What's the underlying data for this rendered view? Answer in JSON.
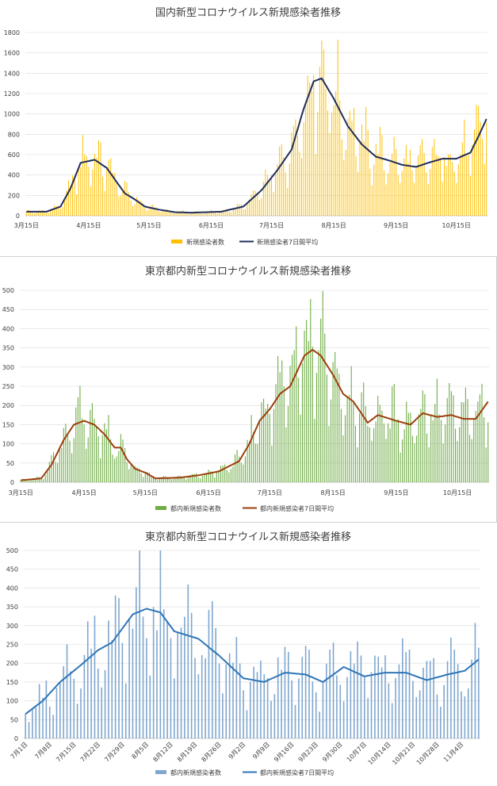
{
  "chart_data": [
    {
      "type": "bar",
      "title": "国内新型コロナウイルス新規感染者推移",
      "ylim": [
        0,
        1800
      ],
      "yticks": [
        0,
        200,
        400,
        600,
        800,
        1000,
        1200,
        1400,
        1600,
        1800
      ],
      "x_start": "2020-03-15",
      "x_end": "2020-10-30",
      "x_tick_labels": [
        "3月15日",
        "4月15日",
        "5月15日",
        "6月15日",
        "7月15日",
        "8月15日",
        "9月15日",
        "10月15日"
      ],
      "grid": true,
      "legend": "bottom",
      "series": [
        {
          "name": "新規感染者数",
          "kind": "bar",
          "color": "#ffc000"
        },
        {
          "name": "新規感染者7日間平均",
          "kind": "line",
          "color": "#1f2d5a",
          "anchors": [
            [
              "2020-03-15",
              40
            ],
            [
              "2020-03-25",
              40
            ],
            [
              "2020-04-01",
              90
            ],
            [
              "2020-04-06",
              270
            ],
            [
              "2020-04-11",
              520
            ],
            [
              "2020-04-18",
              550
            ],
            [
              "2020-04-24",
              470
            ],
            [
              "2020-04-29",
              330
            ],
            [
              "2020-05-03",
              220
            ],
            [
              "2020-05-08",
              160
            ],
            [
              "2020-05-13",
              90
            ],
            [
              "2020-05-20",
              60
            ],
            [
              "2020-05-28",
              35
            ],
            [
              "2020-06-05",
              30
            ],
            [
              "2020-06-20",
              40
            ],
            [
              "2020-07-01",
              90
            ],
            [
              "2020-07-10",
              250
            ],
            [
              "2020-07-18",
              450
            ],
            [
              "2020-07-25",
              650
            ],
            [
              "2020-07-31",
              1050
            ],
            [
              "2020-08-05",
              1320
            ],
            [
              "2020-08-09",
              1350
            ],
            [
              "2020-08-15",
              1150
            ],
            [
              "2020-08-22",
              880
            ],
            [
              "2020-08-29",
              700
            ],
            [
              "2020-09-05",
              580
            ],
            [
              "2020-09-12",
              540
            ],
            [
              "2020-09-18",
              500
            ],
            [
              "2020-09-25",
              480
            ],
            [
              "2020-10-01",
              520
            ],
            [
              "2020-10-08",
              560
            ],
            [
              "2020-10-15",
              560
            ],
            [
              "2020-10-22",
              620
            ],
            [
              "2020-10-26",
              780
            ],
            [
              "2020-10-30",
              950
            ]
          ]
        }
      ]
    },
    {
      "type": "bar",
      "title": "東京都内新型コロナウイルス新規感染者推移",
      "ylim": [
        0,
        500
      ],
      "yticks": [
        0,
        50,
        100,
        150,
        200,
        250,
        300,
        350,
        400,
        450,
        500
      ],
      "x_start": "2020-03-15",
      "x_end": "2020-10-30",
      "x_tick_labels": [
        "3月15日",
        "4月15日",
        "5月15日",
        "6月15日",
        "7月15日",
        "8月15日",
        "9月15日",
        "10月15日"
      ],
      "grid": true,
      "legend": "bottom",
      "series": [
        {
          "name": "都内新規感染者数",
          "kind": "bar",
          "color": "#70ad47"
        },
        {
          "name": "都内新規感染者7日間平均",
          "kind": "line",
          "color": "#9c3f0c",
          "anchors": [
            [
              "2020-03-15",
              5
            ],
            [
              "2020-03-25",
              10
            ],
            [
              "2020-03-30",
              45
            ],
            [
              "2020-04-05",
              110
            ],
            [
              "2020-04-10",
              150
            ],
            [
              "2020-04-15",
              160
            ],
            [
              "2020-04-20",
              150
            ],
            [
              "2020-04-25",
              125
            ],
            [
              "2020-04-30",
              90
            ],
            [
              "2020-05-03",
              90
            ],
            [
              "2020-05-06",
              60
            ],
            [
              "2020-05-10",
              35
            ],
            [
              "2020-05-15",
              25
            ],
            [
              "2020-05-20",
              10
            ],
            [
              "2020-06-01",
              12
            ],
            [
              "2020-06-10",
              18
            ],
            [
              "2020-06-20",
              28
            ],
            [
              "2020-06-30",
              55
            ],
            [
              "2020-07-05",
              100
            ],
            [
              "2020-07-10",
              160
            ],
            [
              "2020-07-15",
              190
            ],
            [
              "2020-07-20",
              230
            ],
            [
              "2020-07-25",
              250
            ],
            [
              "2020-08-01",
              330
            ],
            [
              "2020-08-05",
              345
            ],
            [
              "2020-08-09",
              330
            ],
            [
              "2020-08-15",
              280
            ],
            [
              "2020-08-20",
              230
            ],
            [
              "2020-08-25",
              210
            ],
            [
              "2020-09-01",
              155
            ],
            [
              "2020-09-06",
              175
            ],
            [
              "2020-09-15",
              160
            ],
            [
              "2020-09-22",
              150
            ],
            [
              "2020-09-28",
              180
            ],
            [
              "2020-10-05",
              170
            ],
            [
              "2020-10-12",
              175
            ],
            [
              "2020-10-18",
              165
            ],
            [
              "2020-10-24",
              165
            ],
            [
              "2020-10-30",
              210
            ]
          ]
        }
      ]
    },
    {
      "type": "bar",
      "title": "東京都内新型コロナウイルス新規感染者推移",
      "ylim": [
        0,
        500
      ],
      "yticks": [
        0,
        50,
        100,
        150,
        200,
        250,
        300,
        350,
        400,
        450,
        500
      ],
      "x_start": "2020-07-01",
      "x_end": "2020-11-09",
      "x_tick_labels": [
        "7月1日",
        "7月8日",
        "7月15日",
        "7月22日",
        "7月29日",
        "8月5日",
        "8月12日",
        "8月19日",
        "8月26日",
        "9月2日",
        "9月9日",
        "9月16日",
        "9月23日",
        "9月30日",
        "10月7日",
        "10月14日",
        "10月21日",
        "10月28日",
        "11月4日"
      ],
      "grid": true,
      "legend": "bottom",
      "series": [
        {
          "name": "都内新規感染者数",
          "kind": "bar",
          "color": "#7fa7cf"
        },
        {
          "name": "都内新規感染者7日間平均",
          "kind": "line",
          "color": "#2e75b6",
          "anchors": [
            [
              "2020-07-01",
              65
            ],
            [
              "2020-07-06",
              100
            ],
            [
              "2020-07-11",
              150
            ],
            [
              "2020-07-17",
              195
            ],
            [
              "2020-07-22",
              235
            ],
            [
              "2020-07-26",
              255
            ],
            [
              "2020-08-01",
              330
            ],
            [
              "2020-08-05",
              345
            ],
            [
              "2020-08-09",
              335
            ],
            [
              "2020-08-13",
              285
            ],
            [
              "2020-08-20",
              265
            ],
            [
              "2020-08-26",
              220
            ],
            [
              "2020-09-02",
              160
            ],
            [
              "2020-09-08",
              150
            ],
            [
              "2020-09-14",
              175
            ],
            [
              "2020-09-20",
              170
            ],
            [
              "2020-09-25",
              150
            ],
            [
              "2020-10-01",
              190
            ],
            [
              "2020-10-07",
              165
            ],
            [
              "2020-10-13",
              175
            ],
            [
              "2020-10-19",
              175
            ],
            [
              "2020-10-25",
              155
            ],
            [
              "2020-10-31",
              170
            ],
            [
              "2020-11-05",
              180
            ],
            [
              "2020-11-09",
              210
            ]
          ]
        }
      ]
    }
  ]
}
